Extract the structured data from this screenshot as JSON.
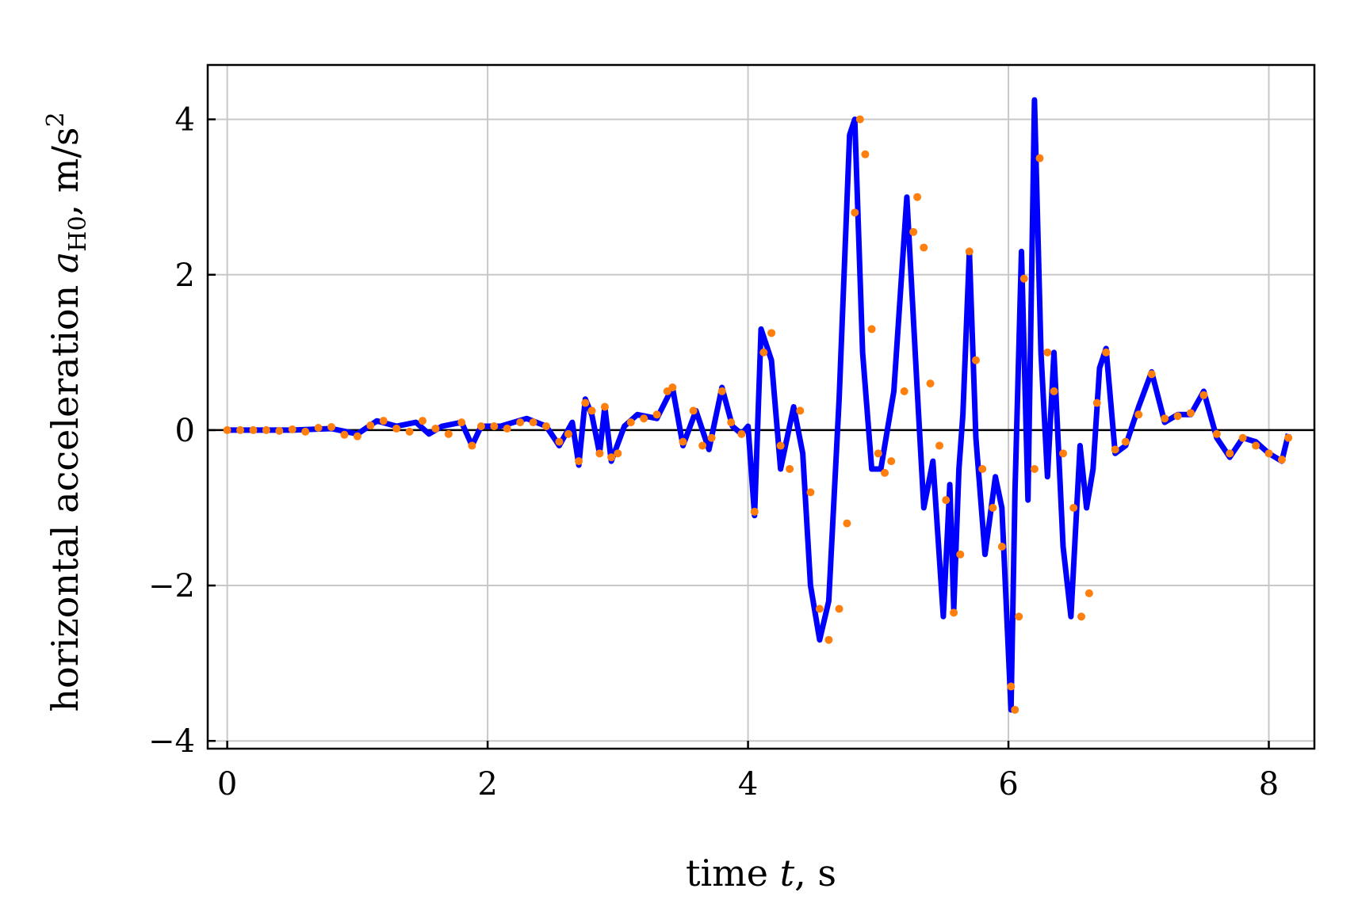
{
  "chart_data": {
    "type": "line",
    "title": "",
    "xlabel": "time t, s",
    "ylabel": "horizontal acceleration a_H0, m/s^2",
    "xlabel_parts": {
      "pre": "time ",
      "var": "t",
      "post": ", s"
    },
    "ylabel_parts": {
      "pre": "horizontal acceleration ",
      "var": "a",
      "sub": "H0",
      "post": ", m/s",
      "sup": "2"
    },
    "xlim": [
      -0.15,
      8.35
    ],
    "ylim": [
      -4.1,
      4.7
    ],
    "xticks": [
      0,
      2,
      4,
      6,
      8
    ],
    "yticks": [
      -4,
      -2,
      0,
      2,
      4
    ],
    "xtick_labels": [
      "0",
      "2",
      "4",
      "6",
      "8"
    ],
    "ytick_labels": [
      "−4",
      "−2",
      "0",
      "2",
      "4"
    ],
    "grid": true,
    "zero_line": true,
    "colors": {
      "line": "#0000ff",
      "points": "#ff7f0e",
      "grid": "#c8c8c8",
      "zero": "#000000"
    },
    "series": [
      {
        "kind": "line",
        "x": [
          0,
          0.5,
          0.8,
          1.0,
          1.15,
          1.3,
          1.45,
          1.55,
          1.65,
          1.8,
          1.88,
          1.95,
          2.1,
          2.3,
          2.45,
          2.55,
          2.65,
          2.7,
          2.75,
          2.8,
          2.86,
          2.9,
          2.95,
          3.05,
          3.15,
          3.3,
          3.42,
          3.5,
          3.6,
          3.7,
          3.8,
          3.88,
          3.95,
          4.0,
          4.05,
          4.1,
          4.18,
          4.25,
          4.35,
          4.42,
          4.48,
          4.55,
          4.62,
          4.7,
          4.78,
          4.82,
          4.88,
          4.95,
          5.02,
          5.12,
          5.22,
          5.3,
          5.35,
          5.42,
          5.5,
          5.55,
          5.58,
          5.62,
          5.65,
          5.7,
          5.75,
          5.82,
          5.9,
          5.95,
          6.02,
          6.05,
          6.1,
          6.15,
          6.2,
          6.25,
          6.3,
          6.35,
          6.42,
          6.48,
          6.55,
          6.6,
          6.65,
          6.7,
          6.75,
          6.82,
          6.9,
          7.0,
          7.1,
          7.2,
          7.3,
          7.4,
          7.5,
          7.6,
          7.7,
          7.8,
          7.9,
          8.0,
          8.1,
          8.15
        ],
        "y": [
          0,
          0,
          0.02,
          -0.05,
          0.12,
          0.05,
          0.1,
          -0.05,
          0.05,
          0.1,
          -0.2,
          0.05,
          0.05,
          0.15,
          0.05,
          -0.2,
          0.1,
          -0.45,
          0.4,
          0.2,
          -0.3,
          0.3,
          -0.4,
          0.05,
          0.2,
          0.15,
          0.55,
          -0.2,
          0.25,
          -0.25,
          0.55,
          0.05,
          -0.05,
          0.05,
          -1.1,
          1.3,
          0.9,
          -0.5,
          0.3,
          -0.3,
          -2.0,
          -2.7,
          -2.2,
          0.4,
          3.8,
          4.0,
          1.0,
          -0.5,
          -0.5,
          0.5,
          3.0,
          0.5,
          -1.0,
          -0.4,
          -2.4,
          -0.7,
          -2.3,
          -0.5,
          0.2,
          2.3,
          -0.1,
          -1.6,
          -0.6,
          -1.0,
          -3.6,
          -0.8,
          2.3,
          -0.9,
          4.25,
          1.0,
          -0.6,
          1.0,
          -1.5,
          -2.4,
          -0.2,
          -1.0,
          -0.5,
          0.8,
          1.05,
          -0.3,
          -0.2,
          0.3,
          0.75,
          0.1,
          0.2,
          0.2,
          0.5,
          -0.1,
          -0.35,
          -0.1,
          -0.15,
          -0.3,
          -0.4,
          -0.05
        ]
      },
      {
        "kind": "points",
        "x": [
          0,
          0.1,
          0.2,
          0.3,
          0.4,
          0.5,
          0.6,
          0.7,
          0.8,
          0.9,
          1.0,
          1.1,
          1.2,
          1.3,
          1.4,
          1.5,
          1.6,
          1.7,
          1.8,
          1.88,
          1.95,
          2.05,
          2.15,
          2.25,
          2.35,
          2.45,
          2.55,
          2.62,
          2.7,
          2.75,
          2.8,
          2.86,
          2.9,
          2.95,
          3.0,
          3.1,
          3.2,
          3.3,
          3.38,
          3.42,
          3.5,
          3.58,
          3.65,
          3.72,
          3.8,
          3.87,
          3.95,
          4.05,
          4.12,
          4.18,
          4.25,
          4.32,
          4.4,
          4.48,
          4.55,
          4.62,
          4.7,
          4.76,
          4.82,
          4.86,
          4.9,
          4.95,
          5.0,
          5.05,
          5.1,
          5.2,
          5.27,
          5.3,
          5.35,
          5.4,
          5.47,
          5.52,
          5.58,
          5.63,
          5.7,
          5.75,
          5.8,
          5.88,
          5.95,
          6.02,
          6.05,
          6.08,
          6.12,
          6.2,
          6.24,
          6.3,
          6.35,
          6.42,
          6.5,
          6.56,
          6.62,
          6.68,
          6.75,
          6.82,
          6.9,
          7.0,
          7.1,
          7.2,
          7.3,
          7.4,
          7.5,
          7.6,
          7.7,
          7.8,
          7.9,
          8.0,
          8.1,
          8.15
        ],
        "y": [
          0,
          0,
          0,
          0,
          -0.01,
          0.01,
          -0.02,
          0.03,
          0.04,
          -0.06,
          -0.08,
          0.06,
          0.12,
          0.02,
          -0.02,
          0.12,
          0.02,
          -0.05,
          0.1,
          -0.2,
          0.05,
          0.05,
          0.02,
          0.1,
          0.1,
          0.05,
          -0.15,
          -0.05,
          -0.4,
          0.35,
          0.25,
          -0.3,
          0.3,
          -0.35,
          -0.3,
          0.1,
          0.15,
          0.2,
          0.5,
          0.55,
          -0.15,
          0.25,
          -0.2,
          -0.1,
          0.5,
          0.1,
          -0.05,
          -1.05,
          1.0,
          1.25,
          -0.2,
          -0.5,
          0.25,
          -0.8,
          -2.3,
          -2.7,
          -2.3,
          -1.2,
          2.8,
          4.0,
          3.55,
          1.3,
          -0.3,
          -0.55,
          -0.4,
          0.5,
          2.55,
          3.0,
          2.35,
          0.6,
          -0.2,
          -0.9,
          -2.35,
          -1.6,
          2.3,
          0.9,
          -0.5,
          -1.0,
          -1.5,
          -3.3,
          -3.6,
          -2.4,
          1.95,
          -0.5,
          3.5,
          1.0,
          0.5,
          -0.3,
          -1.0,
          -2.4,
          -2.1,
          0.35,
          1.0,
          -0.25,
          -0.15,
          0.2,
          0.72,
          0.15,
          0.18,
          0.22,
          0.45,
          -0.05,
          -0.3,
          -0.1,
          -0.2,
          -0.3,
          -0.38,
          -0.1
        ]
      }
    ]
  }
}
